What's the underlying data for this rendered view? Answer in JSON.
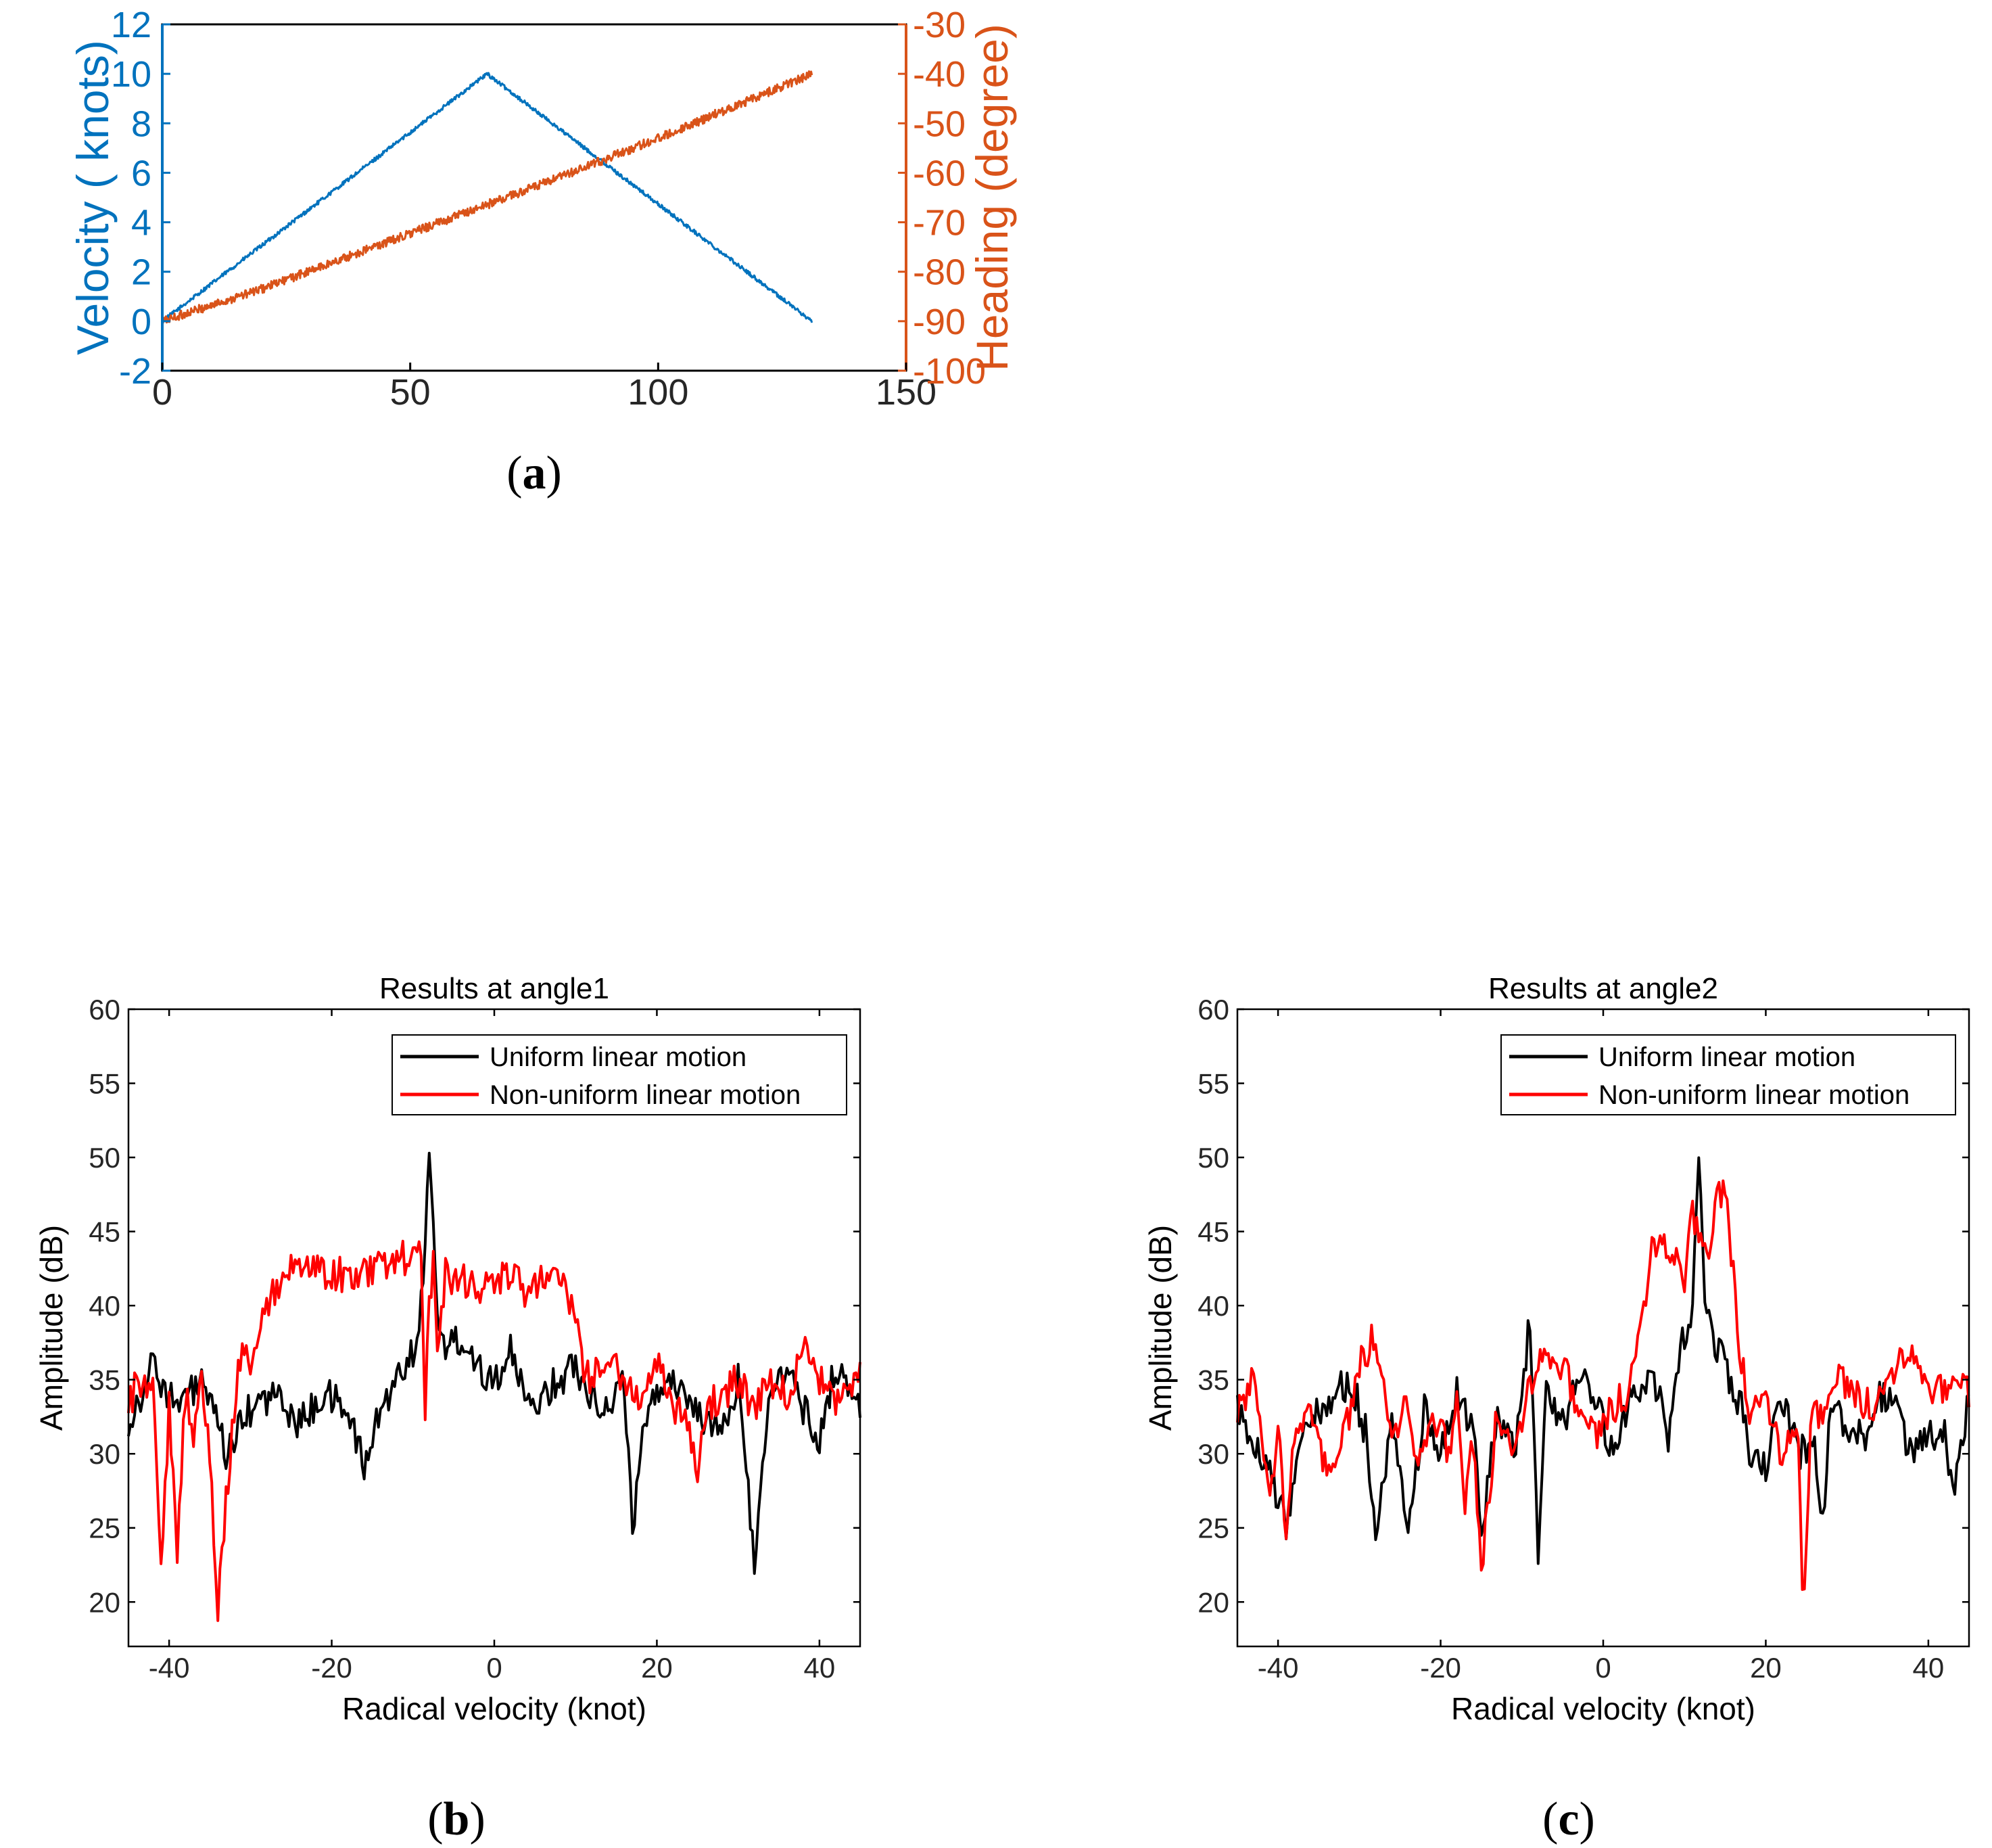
{
  "colors": {
    "blue": "#0072BD",
    "orange": "#D95319",
    "black": "#000000",
    "red": "#FF0000"
  },
  "chart_data": [
    {
      "id": "a",
      "type": "line",
      "caption": "a",
      "xlim": [
        0,
        150
      ],
      "xticks": [
        0,
        50,
        100,
        150
      ],
      "ylim_left": [
        -2,
        12
      ],
      "yticks_left": [
        -2,
        0,
        2,
        4,
        6,
        8,
        10,
        12
      ],
      "ylim_right": [
        -100,
        -30
      ],
      "yticks_right": [
        -100,
        -90,
        -80,
        -70,
        -60,
        -50,
        -40,
        -30
      ],
      "ylabel_left": "Velocity ( knots)",
      "ylabel_right": "Heading (degree)",
      "series": [
        {
          "name": "Velocity",
          "axis": "left",
          "color": "#0072BD",
          "x": [
            0,
            65.5,
            131
          ],
          "y": [
            0,
            10,
            0
          ],
          "noise": 0.08
        },
        {
          "name": "Heading",
          "axis": "right",
          "color": "#D95319",
          "x": [
            0,
            20,
            40,
            60,
            80,
            100,
            131
          ],
          "y": [
            -90,
            -83.5,
            -76,
            -68.5,
            -61,
            -53,
            -40
          ],
          "noise": 0.9
        }
      ]
    },
    {
      "id": "b",
      "type": "line",
      "caption": "b",
      "title": "Results at angle1",
      "xlabel": "Radical velocity (knot)",
      "ylabel": "Amplitude (dB)",
      "xlim": [
        -45,
        45
      ],
      "xticks": [
        -40,
        -20,
        0,
        20,
        40
      ],
      "ylim": [
        17,
        60
      ],
      "yticks": [
        20,
        25,
        30,
        35,
        40,
        45,
        50,
        55,
        60
      ],
      "legend": [
        "Uniform linear motion",
        "Non-uniform linear motion"
      ],
      "legend_location": "top-right",
      "series": [
        {
          "name": "Uniform linear motion",
          "color": "#000000",
          "x": [
            -45,
            -42,
            -39,
            -36,
            -33,
            -30,
            -27,
            -24,
            -21,
            -18,
            -16,
            -14,
            -12,
            -10,
            -9,
            -8,
            -7,
            -6,
            -4,
            -2,
            0,
            2,
            4,
            6,
            8,
            10,
            12,
            14,
            16,
            17,
            19,
            22,
            25,
            28,
            30,
            32,
            34,
            36,
            38,
            40,
            42,
            45
          ],
          "y": [
            32,
            36,
            33,
            35,
            30,
            33,
            34,
            32,
            34,
            33,
            29,
            33,
            35,
            37,
            40,
            50,
            40,
            37,
            38,
            36,
            35,
            37,
            33,
            34,
            35,
            36,
            34,
            33,
            35,
            25,
            34,
            35,
            33,
            31,
            35,
            23,
            34,
            36,
            33,
            31,
            36,
            33
          ]
        },
        {
          "name": "Non-uniform linear motion",
          "color": "#FF0000",
          "x": [
            -45,
            -44,
            -42,
            -41,
            -40,
            -39,
            -38,
            -37,
            -36,
            -35,
            -34,
            -33,
            -32,
            -31,
            -30,
            -29,
            -28,
            -27,
            -25,
            -20,
            -15,
            -12,
            -10,
            -9,
            -8.5,
            -8,
            -7.5,
            -7,
            -6,
            -4,
            -2,
            0,
            2,
            4,
            6,
            8,
            9,
            10,
            11,
            12,
            14,
            16,
            18,
            20,
            22,
            24,
            25,
            26,
            28,
            30,
            32,
            34,
            36,
            38,
            40,
            42,
            45
          ],
          "y": [
            33,
            35,
            34,
            23,
            33,
            23,
            34,
            31,
            35,
            30,
            19.5,
            27,
            33,
            38,
            35,
            38,
            40,
            41,
            43,
            42,
            42.5,
            43,
            43.5,
            43,
            33,
            40,
            43,
            36,
            42,
            42,
            41,
            42,
            42,
            41,
            42,
            42,
            41,
            39,
            36,
            35,
            37,
            35,
            34,
            36,
            33,
            32,
            28,
            33,
            34,
            35,
            33,
            35,
            34,
            37,
            35,
            33,
            35
          ]
        }
      ]
    },
    {
      "id": "c",
      "type": "line",
      "caption": "c",
      "title": "Results at angle2",
      "xlabel": "Radical velocity (knot)",
      "ylabel": "Amplitude (dB)",
      "xlim": [
        -45,
        45
      ],
      "xticks": [
        -40,
        -20,
        0,
        20,
        40
      ],
      "ylim": [
        17,
        60
      ],
      "yticks": [
        20,
        25,
        30,
        35,
        40,
        45,
        50,
        55,
        60
      ],
      "legend": [
        "Uniform linear motion",
        "Non-uniform linear motion"
      ],
      "legend_location": "top-right",
      "series": [
        {
          "name": "Uniform linear motion",
          "color": "#000000",
          "x": [
            -45,
            -43,
            -41,
            -39,
            -37,
            -35,
            -33,
            -31,
            -29,
            -28,
            -26,
            -24,
            -22,
            -20,
            -18,
            -16,
            -15,
            -13,
            -11,
            -9,
            -8,
            -7,
            -5,
            -3,
            -1,
            1,
            3,
            5,
            7,
            8,
            9,
            10,
            11,
            11.8,
            12.5,
            13.5,
            15,
            16,
            17,
            18,
            20,
            22,
            24,
            26,
            27,
            28,
            30,
            32,
            34,
            36,
            38,
            40,
            42,
            43,
            45
          ],
          "y": [
            33,
            31,
            29,
            25,
            32,
            33,
            34,
            35,
            31,
            24,
            33,
            25,
            33,
            30,
            34,
            32,
            24.5,
            33,
            30,
            39,
            23,
            34,
            32,
            35,
            34,
            30,
            33,
            35,
            34,
            30,
            36,
            38,
            40,
            51.5,
            40,
            38,
            36,
            34,
            33,
            30,
            29,
            34,
            30,
            31,
            25,
            33,
            32,
            31,
            34,
            33,
            30,
            31,
            32,
            27,
            34
          ]
        },
        {
          "name": "Non-uniform linear motion",
          "color": "#FF0000",
          "x": [
            -45,
            -43,
            -41,
            -40,
            -39,
            -38,
            -36,
            -35,
            -33,
            -31,
            -30,
            -29,
            -28,
            -26,
            -24,
            -23,
            -21,
            -19,
            -18,
            -17,
            -16,
            -15,
            -13,
            -11,
            -9,
            -7,
            -5,
            -3,
            -1,
            1,
            3,
            5,
            6,
            7,
            8,
            9,
            10,
            11,
            12,
            13,
            14,
            15,
            16,
            17,
            18,
            20,
            22,
            24,
            24.6,
            25.5,
            27,
            29,
            31,
            33,
            35,
            37,
            39,
            41,
            43,
            45
          ],
          "y": [
            33,
            35,
            27,
            32,
            25,
            31,
            34,
            30,
            29,
            33,
            36,
            37,
            38,
            31,
            34,
            29,
            33,
            30,
            34,
            26,
            31,
            22,
            33,
            30,
            35,
            37,
            36,
            33,
            31,
            33,
            34,
            40,
            44,
            45,
            43,
            44,
            42,
            46,
            45,
            43,
            47,
            48,
            42,
            36,
            33,
            34,
            30,
            32,
            19,
            32,
            33,
            35,
            34,
            33,
            35,
            37,
            36,
            34,
            35,
            34
          ]
        }
      ]
    }
  ]
}
